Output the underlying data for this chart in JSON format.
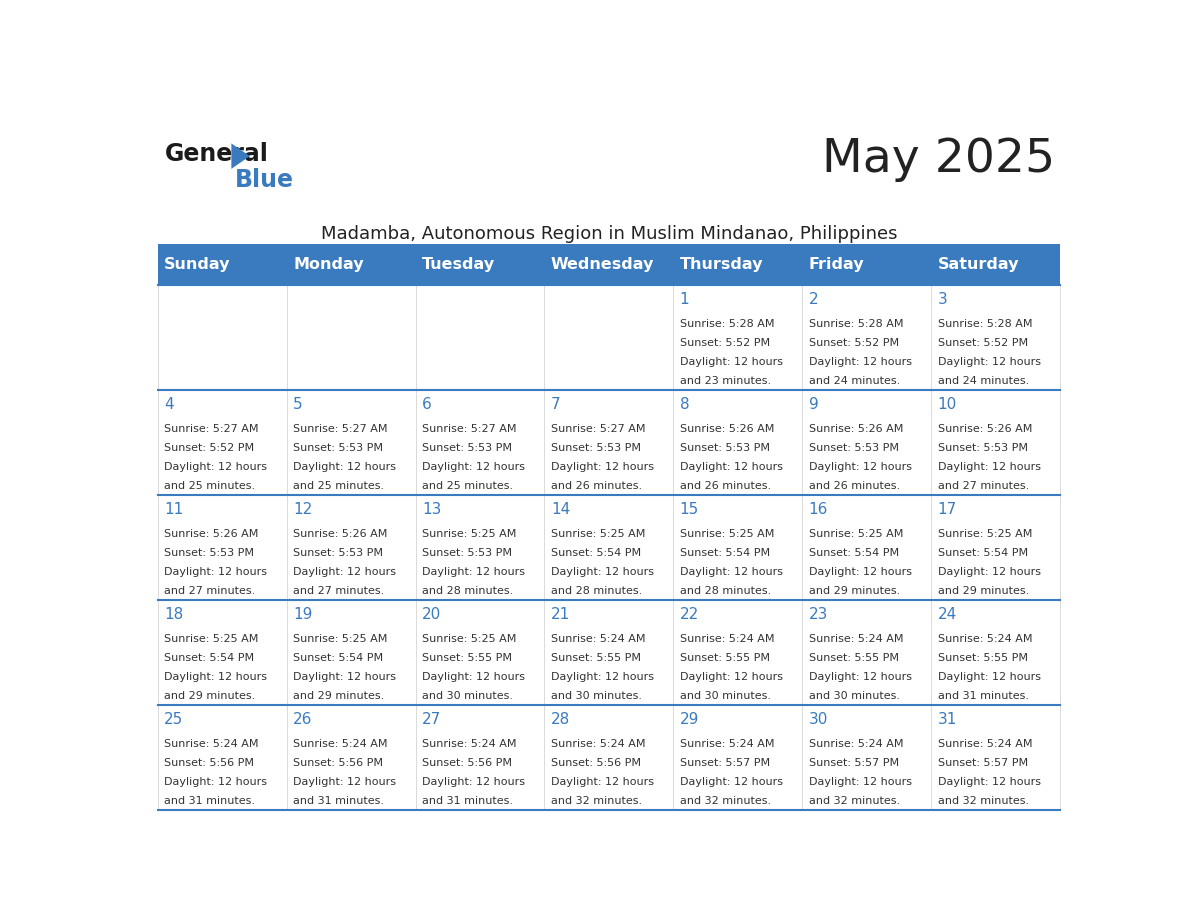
{
  "title": "May 2025",
  "subtitle": "Madamba, Autonomous Region in Muslim Mindanao, Philippines",
  "days_of_week": [
    "Sunday",
    "Monday",
    "Tuesday",
    "Wednesday",
    "Thursday",
    "Friday",
    "Saturday"
  ],
  "header_bg": "#3a7abf",
  "header_text": "#ffffff",
  "cell_text_color": "#333333",
  "day_num_color": "#3a7abf",
  "divider_color": "#3a7abf",
  "title_color": "#222222",
  "subtitle_color": "#222222",
  "calendar_data": [
    [
      {
        "day": null,
        "sunrise": null,
        "sunset": null,
        "daylight": null
      },
      {
        "day": null,
        "sunrise": null,
        "sunset": null,
        "daylight": null
      },
      {
        "day": null,
        "sunrise": null,
        "sunset": null,
        "daylight": null
      },
      {
        "day": null,
        "sunrise": null,
        "sunset": null,
        "daylight": null
      },
      {
        "day": 1,
        "sunrise": "5:28 AM",
        "sunset": "5:52 PM",
        "daylight": "12 hours and 23 minutes."
      },
      {
        "day": 2,
        "sunrise": "5:28 AM",
        "sunset": "5:52 PM",
        "daylight": "12 hours and 24 minutes."
      },
      {
        "day": 3,
        "sunrise": "5:28 AM",
        "sunset": "5:52 PM",
        "daylight": "12 hours and 24 minutes."
      }
    ],
    [
      {
        "day": 4,
        "sunrise": "5:27 AM",
        "sunset": "5:52 PM",
        "daylight": "12 hours and 25 minutes."
      },
      {
        "day": 5,
        "sunrise": "5:27 AM",
        "sunset": "5:53 PM",
        "daylight": "12 hours and 25 minutes."
      },
      {
        "day": 6,
        "sunrise": "5:27 AM",
        "sunset": "5:53 PM",
        "daylight": "12 hours and 25 minutes."
      },
      {
        "day": 7,
        "sunrise": "5:27 AM",
        "sunset": "5:53 PM",
        "daylight": "12 hours and 26 minutes."
      },
      {
        "day": 8,
        "sunrise": "5:26 AM",
        "sunset": "5:53 PM",
        "daylight": "12 hours and 26 minutes."
      },
      {
        "day": 9,
        "sunrise": "5:26 AM",
        "sunset": "5:53 PM",
        "daylight": "12 hours and 26 minutes."
      },
      {
        "day": 10,
        "sunrise": "5:26 AM",
        "sunset": "5:53 PM",
        "daylight": "12 hours and 27 minutes."
      }
    ],
    [
      {
        "day": 11,
        "sunrise": "5:26 AM",
        "sunset": "5:53 PM",
        "daylight": "12 hours and 27 minutes."
      },
      {
        "day": 12,
        "sunrise": "5:26 AM",
        "sunset": "5:53 PM",
        "daylight": "12 hours and 27 minutes."
      },
      {
        "day": 13,
        "sunrise": "5:25 AM",
        "sunset": "5:53 PM",
        "daylight": "12 hours and 28 minutes."
      },
      {
        "day": 14,
        "sunrise": "5:25 AM",
        "sunset": "5:54 PM",
        "daylight": "12 hours and 28 minutes."
      },
      {
        "day": 15,
        "sunrise": "5:25 AM",
        "sunset": "5:54 PM",
        "daylight": "12 hours and 28 minutes."
      },
      {
        "day": 16,
        "sunrise": "5:25 AM",
        "sunset": "5:54 PM",
        "daylight": "12 hours and 29 minutes."
      },
      {
        "day": 17,
        "sunrise": "5:25 AM",
        "sunset": "5:54 PM",
        "daylight": "12 hours and 29 minutes."
      }
    ],
    [
      {
        "day": 18,
        "sunrise": "5:25 AM",
        "sunset": "5:54 PM",
        "daylight": "12 hours and 29 minutes."
      },
      {
        "day": 19,
        "sunrise": "5:25 AM",
        "sunset": "5:54 PM",
        "daylight": "12 hours and 29 minutes."
      },
      {
        "day": 20,
        "sunrise": "5:25 AM",
        "sunset": "5:55 PM",
        "daylight": "12 hours and 30 minutes."
      },
      {
        "day": 21,
        "sunrise": "5:24 AM",
        "sunset": "5:55 PM",
        "daylight": "12 hours and 30 minutes."
      },
      {
        "day": 22,
        "sunrise": "5:24 AM",
        "sunset": "5:55 PM",
        "daylight": "12 hours and 30 minutes."
      },
      {
        "day": 23,
        "sunrise": "5:24 AM",
        "sunset": "5:55 PM",
        "daylight": "12 hours and 30 minutes."
      },
      {
        "day": 24,
        "sunrise": "5:24 AM",
        "sunset": "5:55 PM",
        "daylight": "12 hours and 31 minutes."
      }
    ],
    [
      {
        "day": 25,
        "sunrise": "5:24 AM",
        "sunset": "5:56 PM",
        "daylight": "12 hours and 31 minutes."
      },
      {
        "day": 26,
        "sunrise": "5:24 AM",
        "sunset": "5:56 PM",
        "daylight": "12 hours and 31 minutes."
      },
      {
        "day": 27,
        "sunrise": "5:24 AM",
        "sunset": "5:56 PM",
        "daylight": "12 hours and 31 minutes."
      },
      {
        "day": 28,
        "sunrise": "5:24 AM",
        "sunset": "5:56 PM",
        "daylight": "12 hours and 32 minutes."
      },
      {
        "day": 29,
        "sunrise": "5:24 AM",
        "sunset": "5:57 PM",
        "daylight": "12 hours and 32 minutes."
      },
      {
        "day": 30,
        "sunrise": "5:24 AM",
        "sunset": "5:57 PM",
        "daylight": "12 hours and 32 minutes."
      },
      {
        "day": 31,
        "sunrise": "5:24 AM",
        "sunset": "5:57 PM",
        "daylight": "12 hours and 32 minutes."
      }
    ]
  ]
}
